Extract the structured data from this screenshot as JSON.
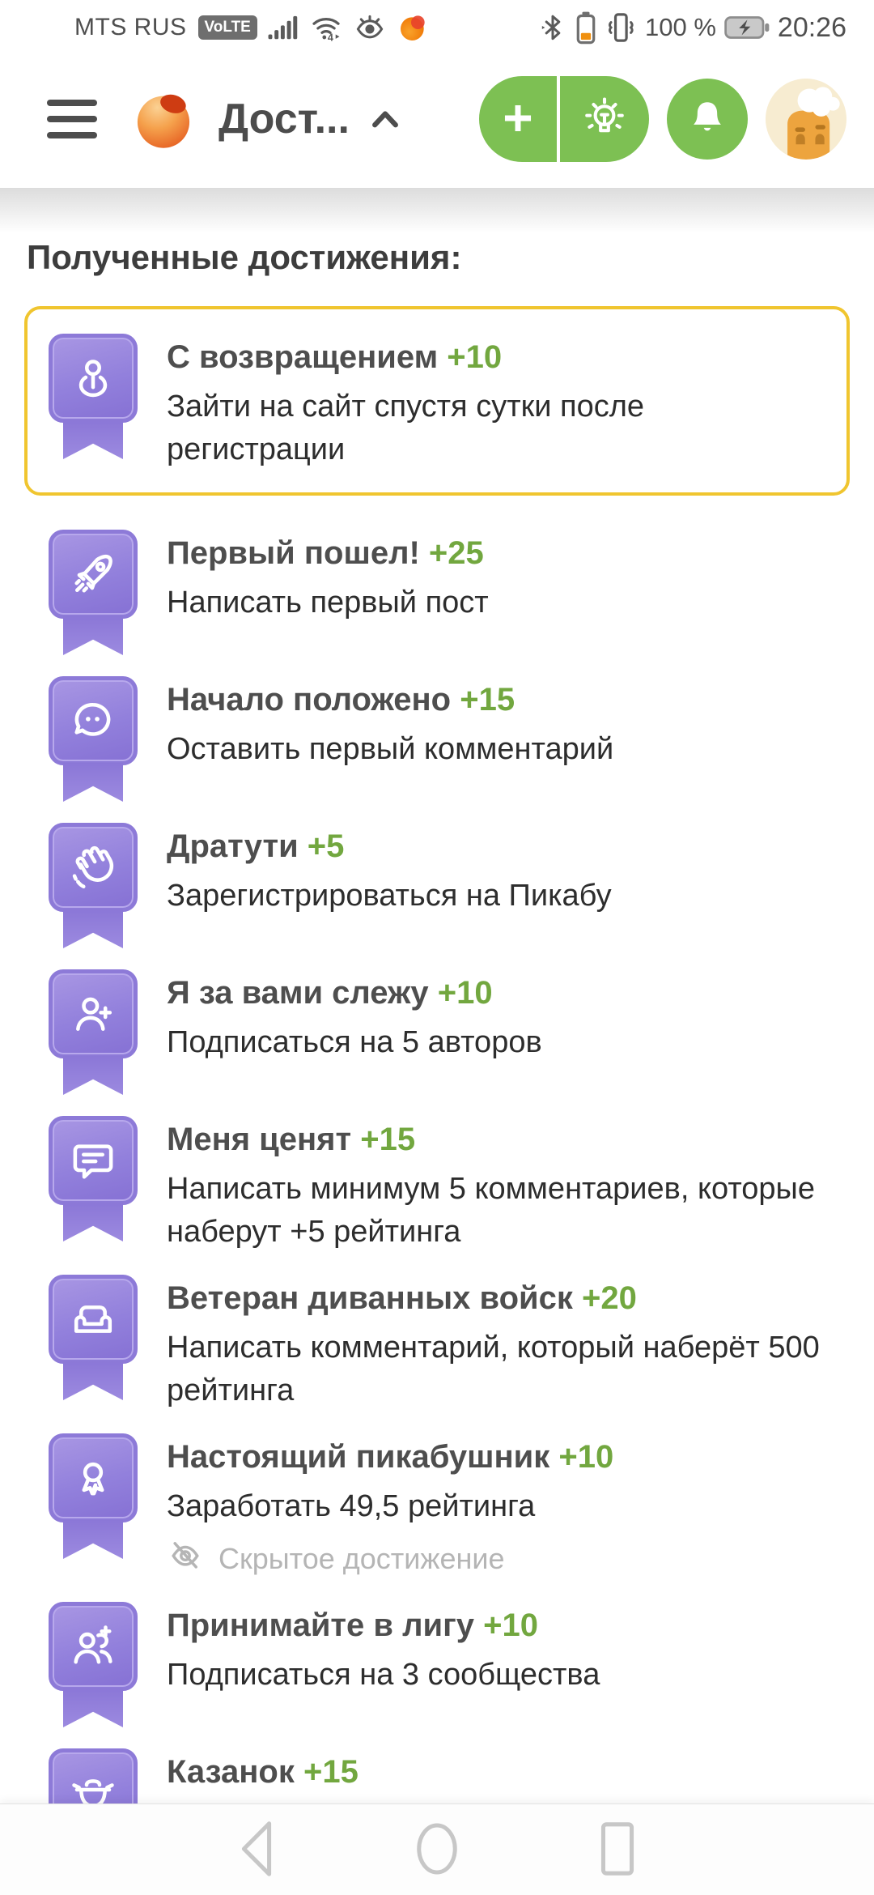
{
  "status_bar": {
    "carrier": "MTS RUS",
    "volte_badge": "VoLTE",
    "battery_percent": "100 %",
    "time": "20:26",
    "left_icons": [
      "signal-strength-icon",
      "wifi-icon",
      "eye-comfort-icon",
      "app-notification-icon"
    ],
    "right_icons": [
      "bluetooth-icon",
      "device-battery-icon",
      "vibrate-mode-icon",
      "battery-charging-icon"
    ]
  },
  "header": {
    "title": "Дост...",
    "icons": [
      "menu-icon",
      "pikabu-logo",
      "chevron-up-icon",
      "plus-icon",
      "lightbulb-icon",
      "bell-icon",
      "avatar"
    ]
  },
  "page": {
    "heading": "Полученные достижения:"
  },
  "achievements": [
    {
      "icon": "pin",
      "title": "С возвращением",
      "points": "+10",
      "description": "Зайти на сайт спустя сутки после регистрации",
      "highlighted": true
    },
    {
      "icon": "rocket",
      "title": "Первый пошел!",
      "points": "+25",
      "description": "Написать первый пост"
    },
    {
      "icon": "chat",
      "title": "Начало положено",
      "points": "+15",
      "description": "Оставить первый комментарий"
    },
    {
      "icon": "hand",
      "title": "Дратути",
      "points": "+5",
      "description": "Зарегистрироваться на Пикабу"
    },
    {
      "icon": "user-plus",
      "title": "Я за вами слежу",
      "points": "+10",
      "description": "Подписаться на 5 авторов"
    },
    {
      "icon": "comment",
      "title": "Меня ценят",
      "points": "+15",
      "description": "Написать минимум 5 комментариев, которые наберут +5 рейтинга"
    },
    {
      "icon": "couch",
      "title": "Ветеран диванных войск",
      "points": "+20",
      "description": "Написать комментарий, который наберёт 500 рейтинга"
    },
    {
      "icon": "medal",
      "title": "Настоящий пикабушник",
      "points": "+10",
      "description": "Заработать 49,5 рейтинга",
      "hidden_note": "Скрытое достижение"
    },
    {
      "icon": "users-plus",
      "title": "Принимайте в лигу",
      "points": "+10",
      "description": "Подписаться на 3 сообщества"
    },
    {
      "icon": "pot",
      "title": "Казанок",
      "points": "+15",
      "description": ""
    }
  ],
  "nav_bar": {
    "icons": [
      "back-icon",
      "home-icon",
      "recents-icon"
    ]
  },
  "colors": {
    "accent_green": "#7dc053",
    "points_green": "#72a73f",
    "badge_purple": "#8d7ad8",
    "highlight_border": "#f0c52f",
    "hidden_gray": "#b5b5b5"
  }
}
